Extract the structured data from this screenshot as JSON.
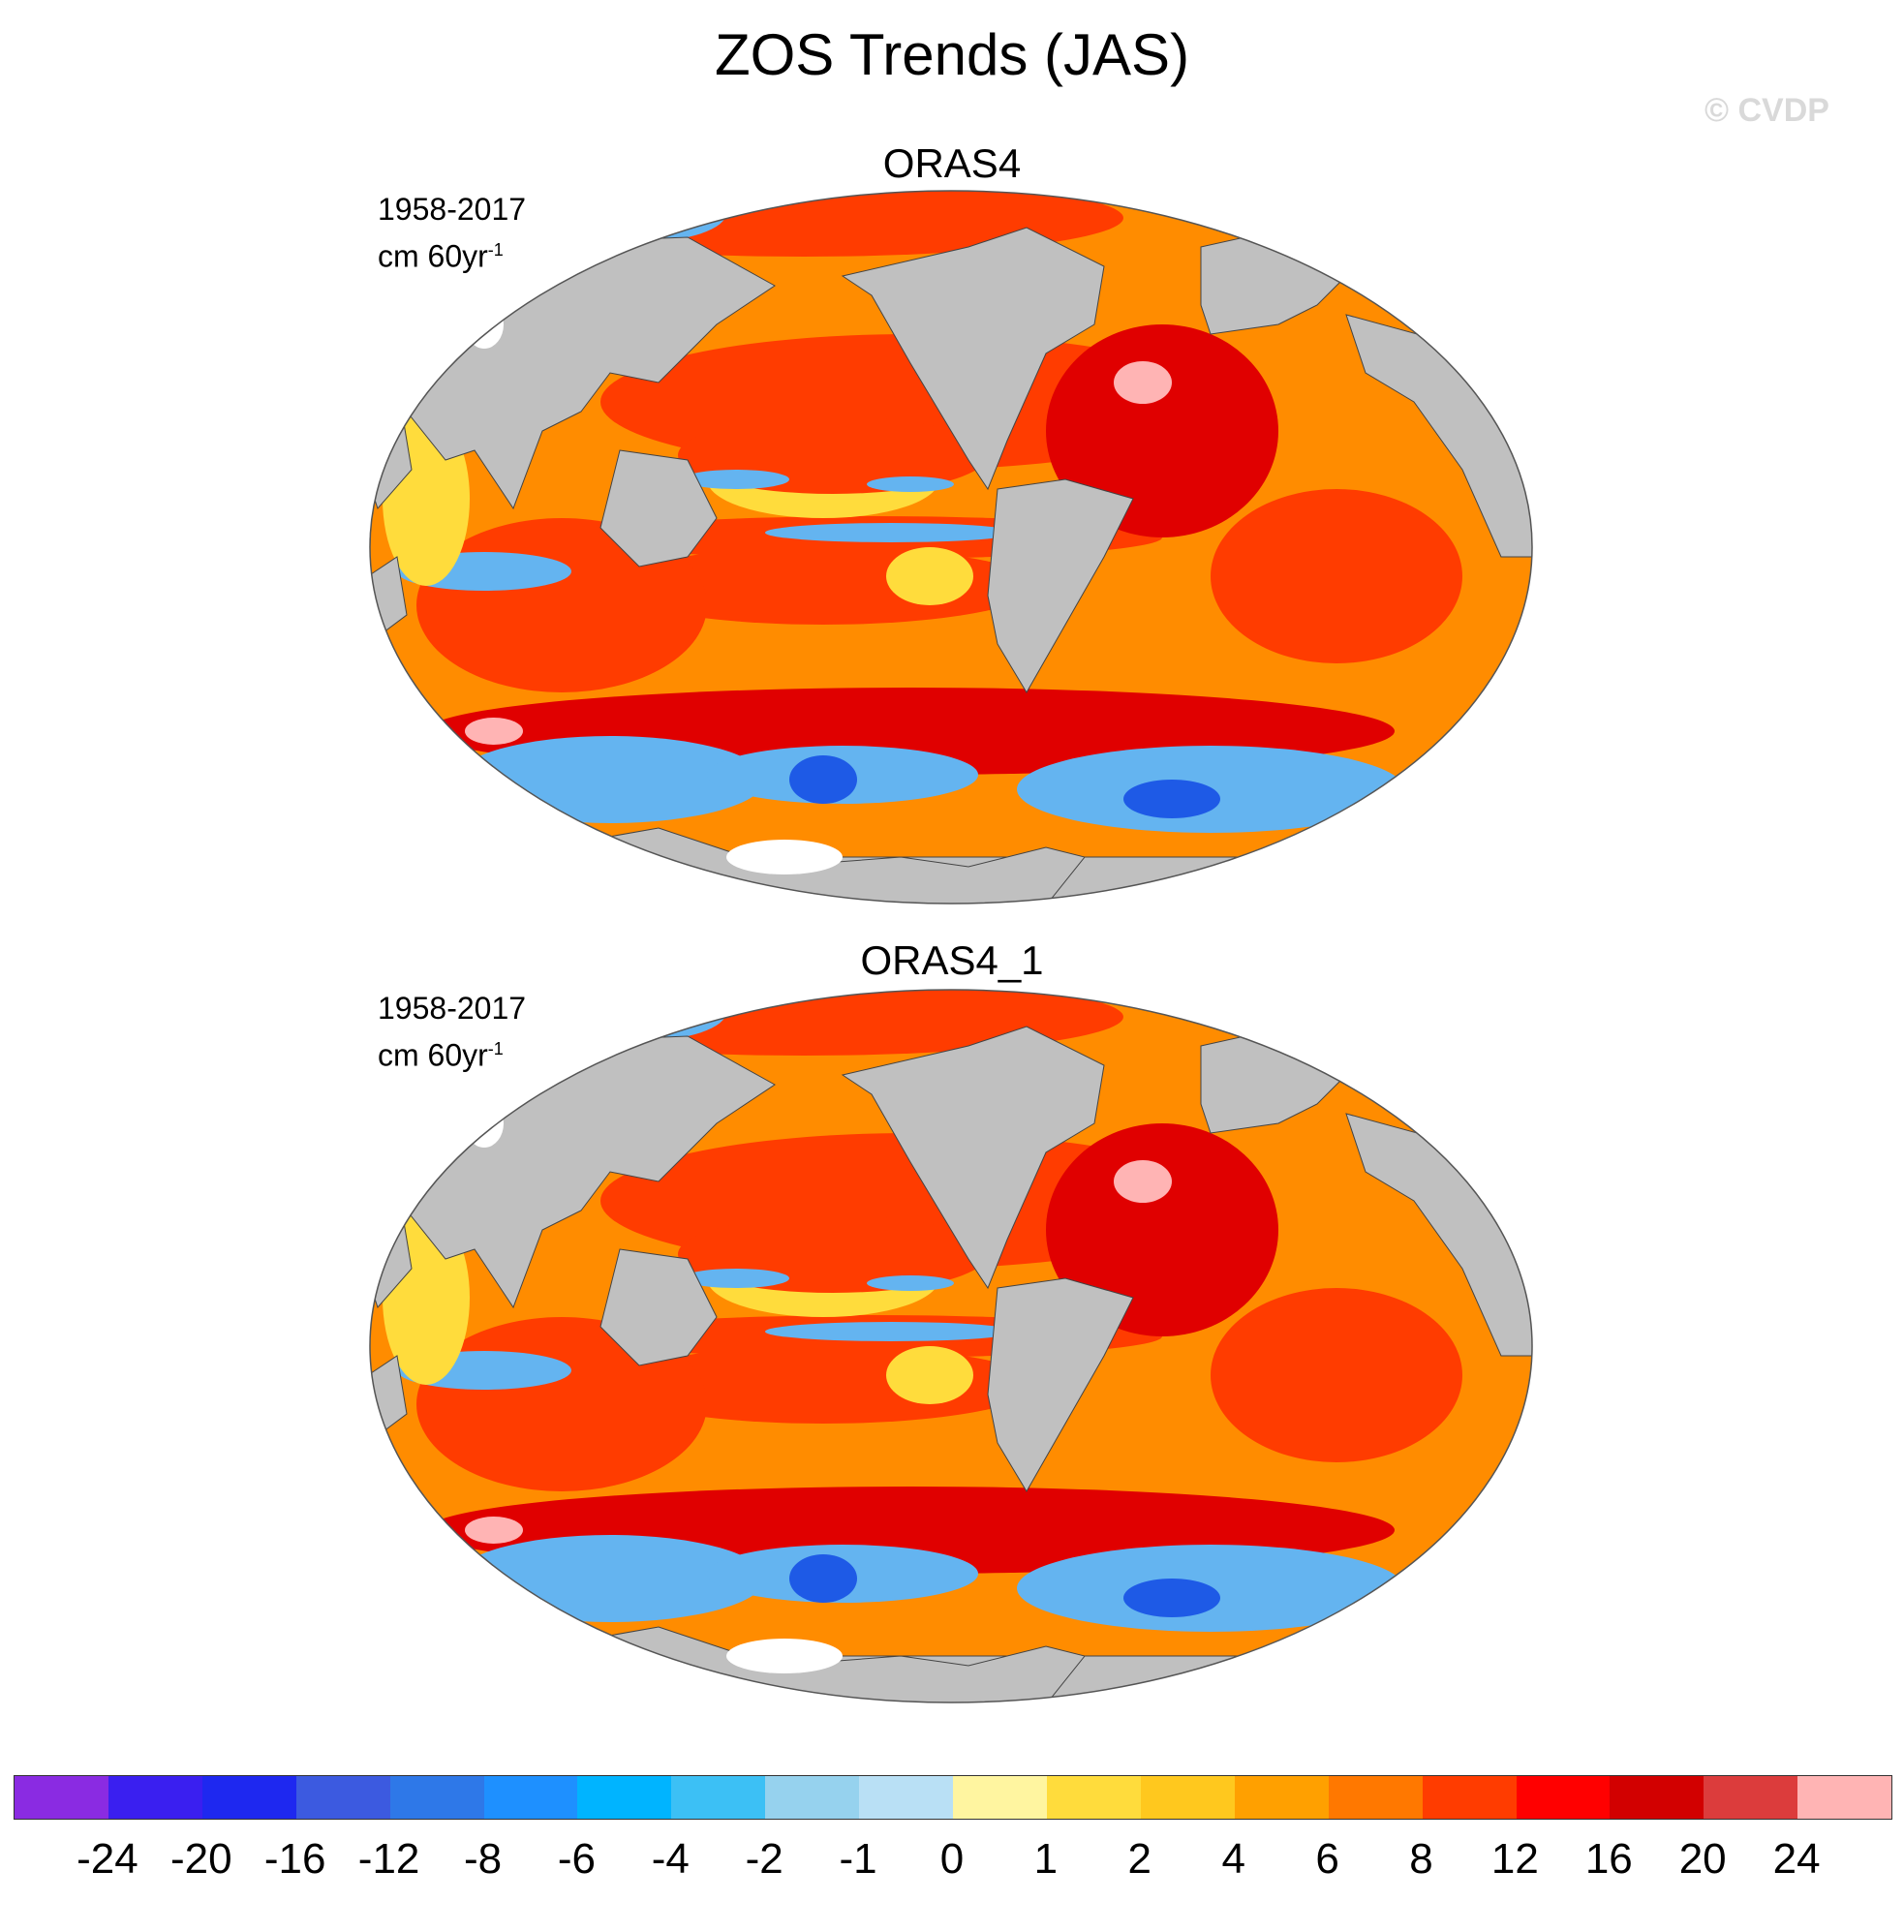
{
  "title": "ZOS Trends (JAS)",
  "watermark": "© CVDP",
  "panels": [
    {
      "name": "ORAS4",
      "period": "1958-2017",
      "units": "cm 60yr",
      "units_exp": "-1"
    },
    {
      "name": "ORAS4_1",
      "period": "1958-2017",
      "units": "cm 60yr",
      "units_exp": "-1"
    }
  ],
  "colorbar": {
    "colors": [
      "#8a2be2",
      "#3a1ff0",
      "#1e28f0",
      "#3c5ae0",
      "#2e78e8",
      "#1e90ff",
      "#00b4ff",
      "#3cc0f5",
      "#96d2ee",
      "#b9e0f5",
      "#fff5a0",
      "#ffdc3c",
      "#ffc81e",
      "#ffa000",
      "#ff7800",
      "#ff3c00",
      "#ff0000",
      "#d20000",
      "#dc3c3c",
      "#ffb4b4"
    ],
    "labels": [
      "-24",
      "-20",
      "-16",
      "-12",
      "-8",
      "-6",
      "-4",
      "-2",
      "-1",
      "0",
      "1",
      "2",
      "4",
      "6",
      "8",
      "12",
      "16",
      "20",
      "24"
    ]
  },
  "map_colors": {
    "land": "#c0c0c0",
    "ice": "#ffffff",
    "ocean_base": "#ff8c00",
    "warm": "#ff3c00",
    "hot": "#e00000",
    "cool": "#64b4f0",
    "cold": "#1e5ae6",
    "light": "#ffdc3c"
  }
}
